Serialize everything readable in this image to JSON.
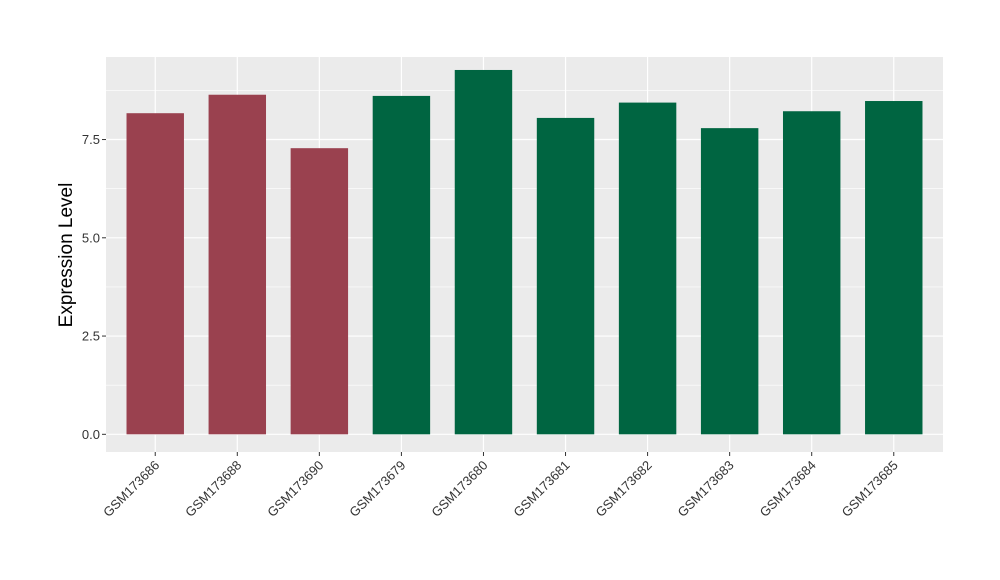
{
  "chart_data": {
    "type": "bar",
    "title": "",
    "xlabel": "",
    "ylabel": "Expression Level",
    "ylim": [
      -0.45,
      9.6
    ],
    "yticks": [
      0.0,
      2.5,
      5.0,
      7.5
    ],
    "ytick_labels": [
      "0.0",
      "2.5",
      "5.0",
      "7.5"
    ],
    "grid": true,
    "categories": [
      "GSM173686",
      "GSM173688",
      "GSM173690",
      "GSM173679",
      "GSM173680",
      "GSM173681",
      "GSM173682",
      "GSM173683",
      "GSM173684",
      "GSM173685"
    ],
    "values": [
      8.17,
      8.64,
      7.28,
      8.61,
      9.27,
      8.05,
      8.44,
      7.79,
      8.22,
      8.48
    ],
    "groups": [
      0,
      0,
      0,
      1,
      1,
      1,
      1,
      1,
      1,
      1
    ],
    "group_colors": [
      "#9a414f",
      "#006541"
    ],
    "panel_background": "#ebebeb",
    "grid_color": "#ffffff"
  }
}
